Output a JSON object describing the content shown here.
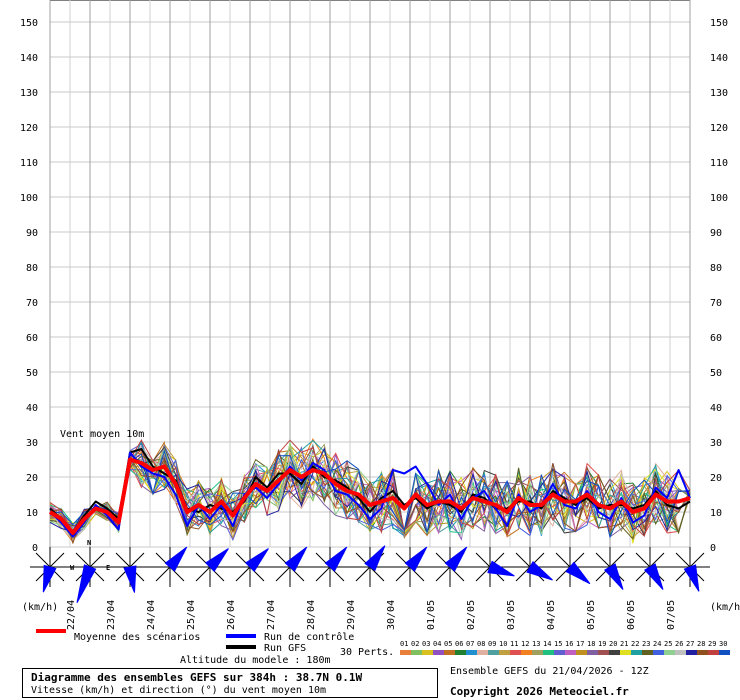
{
  "chart_data": {
    "type": "line",
    "y_ticks": [
      0,
      10,
      20,
      30,
      40,
      50,
      60,
      70,
      80,
      90,
      100,
      110,
      120,
      130,
      140,
      150
    ],
    "ylim": [
      0,
      150
    ],
    "unit_left": "(km/h)",
    "unit_right": "(km/h)",
    "x_labels": [
      "22/04",
      "23/04",
      "24/04",
      "25/04",
      "26/04",
      "27/04",
      "28/04",
      "29/04",
      "30/04",
      "01/05",
      "02/05",
      "03/05",
      "04/05",
      "05/05",
      "06/05",
      "07/05"
    ],
    "step_hours": 6,
    "annotation": "Vent moyen 10m",
    "mean_series": {
      "name": "Moyenne des scénarios",
      "values": [
        10,
        8,
        4,
        8,
        11,
        10,
        7,
        25,
        24,
        22,
        23,
        18,
        10,
        12,
        10,
        13,
        9,
        14,
        18,
        16,
        19,
        22,
        20,
        22,
        21,
        18,
        16,
        15,
        12,
        13,
        14,
        11,
        15,
        12,
        13,
        13,
        11,
        14,
        13,
        12,
        10,
        14,
        12,
        12,
        15,
        13,
        13,
        15,
        12,
        11,
        13,
        10,
        11,
        15,
        13,
        13,
        14
      ]
    },
    "control_series": {
      "name": "Run de contrôle",
      "values": [
        10,
        7,
        3,
        7,
        12,
        9,
        5,
        27,
        23,
        21,
        20,
        15,
        6,
        12,
        8,
        12,
        6,
        15,
        17,
        14,
        18,
        23,
        19,
        24,
        22,
        16,
        15,
        12,
        8,
        11,
        22,
        21,
        23,
        18,
        12,
        15,
        8,
        14,
        16,
        11,
        6,
        15,
        10,
        12,
        18,
        12,
        11,
        16,
        10,
        8,
        14,
        7,
        9,
        17,
        14,
        22,
        14
      ]
    },
    "gfs_series": {
      "name": "Run GFS",
      "values": [
        11,
        8,
        4,
        9,
        13,
        11,
        8,
        27,
        28,
        23,
        21,
        19,
        11,
        10,
        12,
        11,
        10,
        13,
        20,
        17,
        21,
        21,
        18,
        23,
        20,
        19,
        17,
        14,
        10,
        14,
        16,
        12,
        14,
        11,
        13,
        12,
        10,
        15,
        14,
        11,
        11,
        13,
        13,
        11,
        16,
        14,
        12,
        14,
        11,
        12,
        12,
        11,
        12,
        16,
        12,
        11,
        13
      ]
    },
    "member_count": 30,
    "members_label": "30 Perts.",
    "member_labels": [
      "01",
      "02",
      "03",
      "04",
      "05",
      "06",
      "07",
      "08",
      "09",
      "10",
      "11",
      "12",
      "13",
      "14",
      "15",
      "16",
      "17",
      "18",
      "19",
      "20",
      "21",
      "22",
      "23",
      "24",
      "25",
      "26",
      "27",
      "28",
      "29",
      "30"
    ],
    "member_colors": [
      "#e8803c",
      "#80c060",
      "#d8c020",
      "#9050c0",
      "#c07020",
      "#208030",
      "#2090d0",
      "#e0b0a0",
      "#50a0a0",
      "#c0a040",
      "#e05050",
      "#f08020",
      "#a0a060",
      "#20c080",
      "#6060d0",
      "#c060c0",
      "#c09020",
      "#8060a0",
      "#a05050",
      "#404040",
      "#e0e020",
      "#20a0a0",
      "#606020",
      "#4060e0",
      "#90d090",
      "#c0c0c0",
      "#2020a0",
      "#905020",
      "#c04040",
      "#1050c0"
    ],
    "wind_rose": {
      "compass_labels": [
        "N",
        "W",
        "E"
      ],
      "directions_deg": [
        195,
        200,
        170,
        40,
        45,
        45,
        40,
        40,
        35,
        40,
        40,
        110,
        120,
        130,
        150,
        150,
        160
      ]
    }
  },
  "legend": {
    "mean_label": "Moyenne des scénarios",
    "control_label": "Run de contrôle",
    "gfs_label": "Run GFS",
    "altitude": "Altitude du modele : 180m",
    "mean_color": "#ff0000",
    "control_color": "#0000ff",
    "gfs_color": "#000000"
  },
  "info": {
    "title": "Diagramme des ensembles GEFS sur 384h : 38.7N 0.1W",
    "subtitle": "Vitesse (km/h) et direction (°) du vent moyen 10m",
    "run": "Ensemble GEFS du 21/04/2026 - 12Z",
    "copyright": "Copyright 2026 Meteociel.fr"
  }
}
